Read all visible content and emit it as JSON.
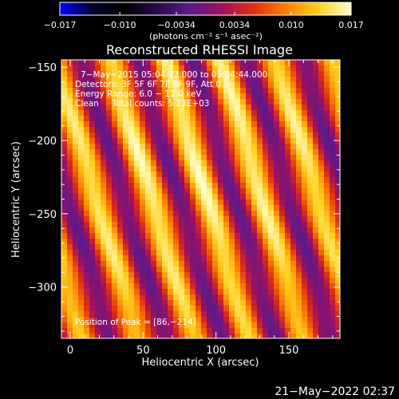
{
  "chart_data": {
    "type": "heatmap",
    "title": "Reconstructed RHESSI Image",
    "xlabel": "Heliocentric X (arcsec)",
    "ylabel": "Heliocentric Y (arcsec)",
    "xlim": [
      -6,
      185
    ],
    "ylim": [
      -335,
      -145
    ],
    "x_ticks": [
      0,
      50,
      100,
      150
    ],
    "x_tick_labels": [
      "0",
      "50",
      "100",
      "150"
    ],
    "y_ticks": [
      -150,
      -200,
      -250,
      -300
    ],
    "y_tick_labels": [
      "−150",
      "−200",
      "−250",
      "−300"
    ],
    "grid": false,
    "colorbar": {
      "min": -0.017,
      "max": 0.017,
      "tick_values": [
        -0.017,
        -0.01,
        -0.0034,
        0.0034,
        0.01,
        0.017
      ],
      "tick_labels": [
        "−0.017",
        "−0.010",
        "−0.0034",
        "0.0034",
        "0.010",
        "0.017"
      ],
      "unit_label": "(photons cm⁻² s⁻¹ asec⁻²)",
      "stops": [
        "#0000ff",
        "#000033",
        "#000000",
        "#2a0a4a",
        "#5a1a8a",
        "#a01060",
        "#e03010",
        "#ff8000",
        "#ffd020",
        "#ffffd0"
      ]
    },
    "annotations": {
      "time_range": "7−May−2015 05:04:12.000 to 05:04:44.000",
      "detectors": "Detectors: 3F 5F 6F 7F 8F 9F, Att 0",
      "energy_range": "Energy Range: 6.0 − 12.0 keV",
      "clean_counts": "Clean     Total counts: 5.23E+03",
      "peak_position": "Position of Peak = [86,−214]"
    },
    "peak": [
      86,
      -214
    ],
    "peak_value": 0.017,
    "pattern": {
      "stripe_spacing": 38,
      "stripe_tilt": 0.3
    }
  },
  "footer": {
    "timestamp": "21−May−2022 02:37"
  }
}
